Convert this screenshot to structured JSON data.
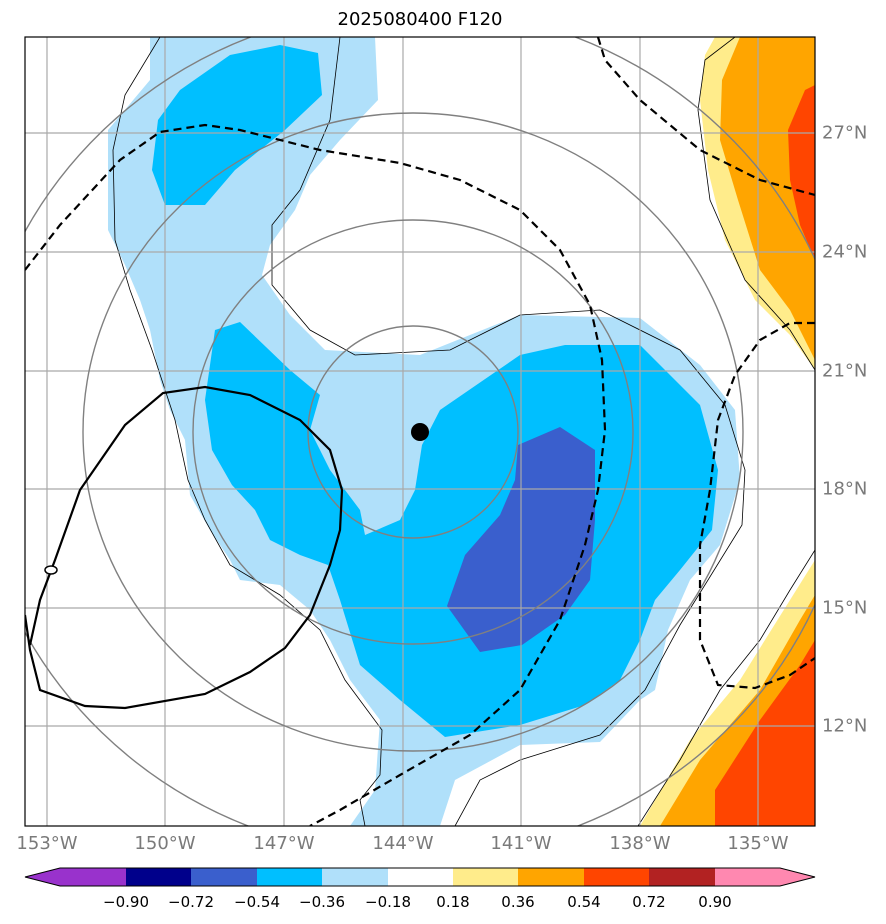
{
  "title": "2025080400 F120",
  "lon_labels": [
    "153°W",
    "150°W",
    "147°W",
    "144°W",
    "141°W",
    "138°W",
    "135°W"
  ],
  "lat_labels": [
    "27°N",
    "24°N",
    "21°N",
    "18°N",
    "15°N",
    "12°N"
  ],
  "colorbar": {
    "labels": [
      "−0.90",
      "−0.72",
      "−0.54",
      "−0.36",
      "−0.18",
      "0.18",
      "0.36",
      "0.54",
      "0.72",
      "0.90"
    ],
    "colors": [
      "#9932cc",
      "#00008b",
      "#3a5fcd",
      "#00bfff",
      "#b0e0fa",
      "#ffffff",
      "#ffec8b",
      "#ffa500",
      "#ff4500",
      "#b22222",
      "#ff88b0"
    ]
  },
  "colors": {
    "light_blue": "#b0e0fa",
    "blue": "#00bfff",
    "dark_blue": "#3a5fcd",
    "yellow": "#ffec8b",
    "orange": "#ffa500",
    "red": "#ff4500",
    "grid": "#a9a9a9",
    "rings": "#808080"
  },
  "storm_center": {
    "lon": -143.6,
    "lat": 19.4
  },
  "rings_deg": [
    2,
    4,
    6,
    8
  ]
}
